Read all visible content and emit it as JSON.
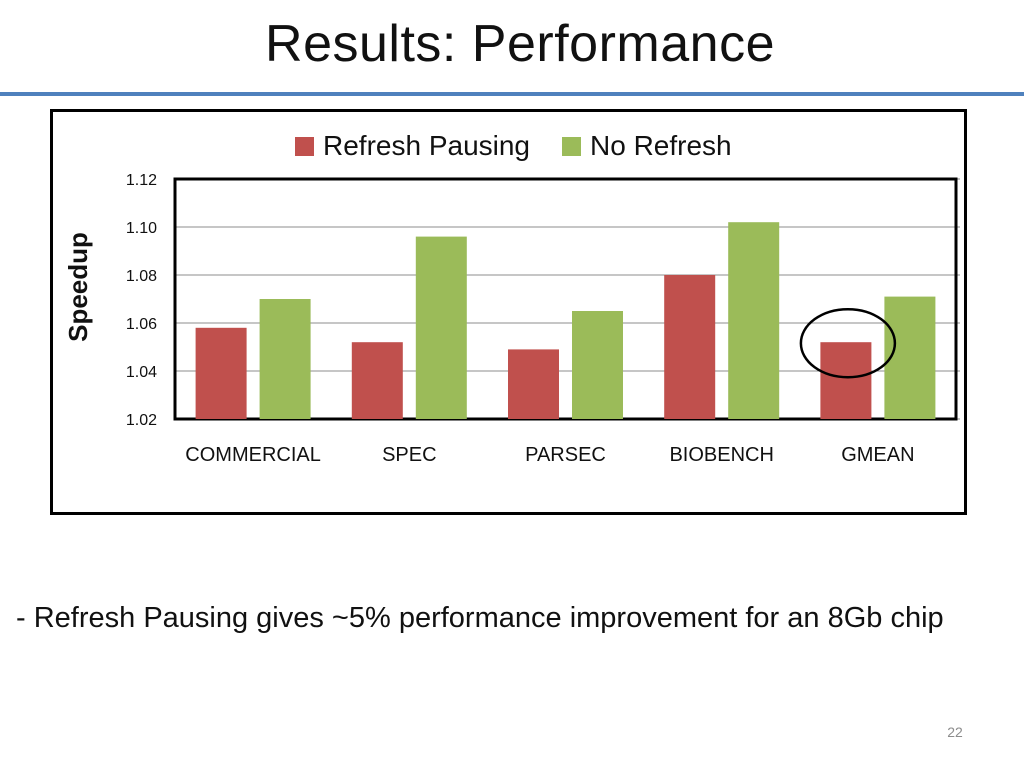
{
  "slide": {
    "title": "Results: Performance",
    "bullet": "- Refresh Pausing gives ~5% performance improvement for an 8Gb chip",
    "page_number": "22"
  },
  "colors": {
    "accent_rule": "#4f81bd",
    "series_refresh_pausing": "#c0504d",
    "series_no_refresh": "#9bbb59"
  },
  "chart_data": {
    "type": "bar",
    "title": "",
    "xlabel": "",
    "ylabel": "Speedup",
    "categories": [
      "COMMERCIAL",
      "SPEC",
      "PARSEC",
      "BIOBENCH",
      "GMEAN"
    ],
    "series": [
      {
        "name": "Refresh Pausing",
        "color": "#c0504d",
        "values": [
          1.058,
          1.052,
          1.049,
          1.08,
          1.052
        ]
      },
      {
        "name": "No Refresh",
        "color": "#9bbb59",
        "values": [
          1.07,
          1.096,
          1.065,
          1.102,
          1.071
        ]
      }
    ],
    "ylim": [
      1.02,
      1.12
    ],
    "yticks": [
      "1.02",
      "1.04",
      "1.06",
      "1.08",
      "1.10",
      "1.12"
    ],
    "grid": true,
    "legend_position": "top",
    "annotation": {
      "type": "circle",
      "category": "GMEAN",
      "series": "Refresh Pausing"
    }
  }
}
